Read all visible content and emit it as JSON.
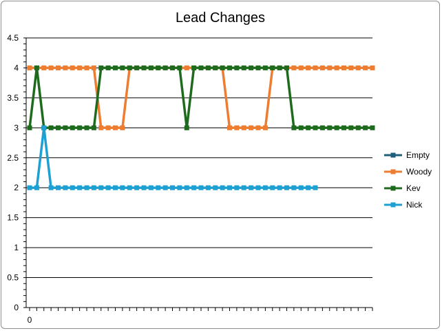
{
  "chart_data": {
    "type": "line",
    "title": "Lead Changes",
    "xlabel": "",
    "ylabel": "",
    "ylim": [
      0,
      4.5
    ],
    "yticks": [
      "0",
      "0.5",
      "1",
      "1.5",
      "2",
      "2.5",
      "3",
      "3.5",
      "4",
      "4.5"
    ],
    "xtick_labels": [
      "0"
    ],
    "x_count": 49,
    "grid": true,
    "legend_position": "right",
    "series": [
      {
        "name": "Empty",
        "color": "#1f5f7a",
        "values": []
      },
      {
        "name": "Woody",
        "color": "#ed7d31",
        "values": [
          4,
          4,
          4,
          4,
          4,
          4,
          4,
          4,
          4,
          4,
          3,
          3,
          3,
          3,
          4,
          4,
          4,
          4,
          4,
          4,
          4,
          4,
          4,
          4,
          4,
          4,
          4,
          4,
          3,
          3,
          3,
          3,
          3,
          3,
          4,
          4,
          4,
          4,
          4,
          4,
          4,
          4,
          4,
          4,
          4,
          4,
          4,
          4,
          4
        ]
      },
      {
        "name": "Kev",
        "color": "#1e6b1e",
        "values": [
          3,
          4,
          3,
          3,
          3,
          3,
          3,
          3,
          3,
          3,
          4,
          4,
          4,
          4,
          4,
          4,
          4,
          4,
          4,
          4,
          4,
          4,
          3,
          4,
          4,
          4,
          4,
          4,
          4,
          4,
          4,
          4,
          4,
          4,
          4,
          4,
          4,
          3,
          3,
          3,
          3,
          3,
          3,
          3,
          3,
          3,
          3,
          3,
          3
        ]
      },
      {
        "name": "Nick",
        "color": "#1ea0d2",
        "values": [
          2,
          2,
          3,
          2,
          2,
          2,
          2,
          2,
          2,
          2,
          2,
          2,
          2,
          2,
          2,
          2,
          2,
          2,
          2,
          2,
          2,
          2,
          2,
          2,
          2,
          2,
          2,
          2,
          2,
          2,
          2,
          2,
          2,
          2,
          2,
          2,
          2,
          2,
          2,
          2,
          2
        ]
      }
    ]
  }
}
